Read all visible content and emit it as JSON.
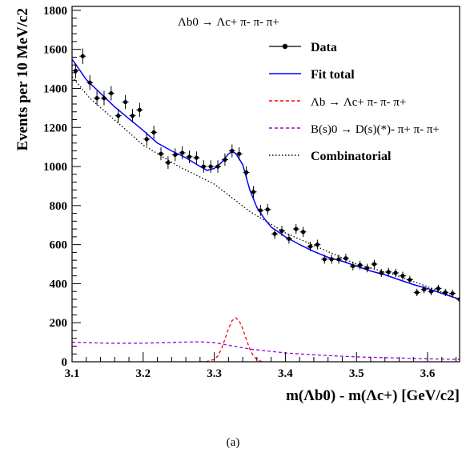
{
  "caption": "(a)",
  "chart_data": {
    "type": "scatter",
    "title": "Λb0 → Λc+ π- π- π+",
    "xlabel": "m(Λb0) - m(Λc+)   [GeV/c2]",
    "ylabel": "Events per 10 MeV/c2",
    "xlim": [
      3.1,
      3.645
    ],
    "ylim": [
      0,
      1820
    ],
    "x_ticks": [
      3.1,
      3.2,
      3.3,
      3.4,
      3.5,
      3.6
    ],
    "x_tick_labels": [
      "3.1",
      "3.2",
      "3.3",
      "3.4",
      "3.5",
      "3.6"
    ],
    "y_ticks": [
      0,
      200,
      400,
      600,
      800,
      1000,
      1200,
      1400,
      1600,
      1800
    ],
    "y_tick_labels": [
      "0",
      "200",
      "400",
      "600",
      "800",
      "1000",
      "1200",
      "1400",
      "1600",
      "1800"
    ],
    "grid": false,
    "legend_position": "top-right",
    "legend": [
      {
        "label": "Data",
        "style": "data"
      },
      {
        "label": "Fit total",
        "style": "solid",
        "color": "#0000ff"
      },
      {
        "label": "Λb → Λc+ π- π- π+",
        "style": "dashed",
        "color": "#ff0000"
      },
      {
        "label": "B(s)0 → D(s)(*)- π+ π- π+",
        "style": "dashed",
        "color": "#a000e0"
      },
      {
        "label": "Combinatorial",
        "style": "dotted",
        "color": "#000000"
      }
    ],
    "series": [
      {
        "name": "Data",
        "style": "points",
        "color": "#000000",
        "x": [
          3.105,
          3.115,
          3.125,
          3.135,
          3.145,
          3.155,
          3.165,
          3.175,
          3.185,
          3.195,
          3.205,
          3.215,
          3.225,
          3.235,
          3.245,
          3.255,
          3.265,
          3.275,
          3.285,
          3.295,
          3.305,
          3.315,
          3.325,
          3.335,
          3.345,
          3.355,
          3.365,
          3.375,
          3.385,
          3.395,
          3.405,
          3.415,
          3.425,
          3.435,
          3.445,
          3.455,
          3.465,
          3.475,
          3.485,
          3.495,
          3.505,
          3.515,
          3.525,
          3.535,
          3.545,
          3.555,
          3.565,
          3.575,
          3.585,
          3.595,
          3.605,
          3.615,
          3.625,
          3.635,
          3.645
        ],
        "y": [
          1490,
          1565,
          1430,
          1350,
          1350,
          1375,
          1260,
          1330,
          1260,
          1290,
          1140,
          1175,
          1065,
          1020,
          1060,
          1070,
          1050,
          1045,
          1000,
          1000,
          1000,
          1035,
          1080,
          1065,
          970,
          870,
          775,
          780,
          655,
          670,
          630,
          680,
          665,
          590,
          600,
          525,
          525,
          525,
          530,
          490,
          495,
          480,
          500,
          455,
          460,
          455,
          440,
          420,
          355,
          370,
          360,
          375,
          355,
          350,
          320
        ],
        "yerr": [
          38,
          40,
          38,
          37,
          37,
          37,
          35,
          36,
          35,
          36,
          34,
          34,
          33,
          32,
          33,
          33,
          32,
          32,
          32,
          32,
          32,
          32,
          33,
          33,
          31,
          30,
          28,
          28,
          26,
          26,
          25,
          26,
          26,
          24,
          25,
          23,
          23,
          23,
          23,
          22,
          22,
          22,
          22,
          21,
          21,
          21,
          21,
          20,
          19,
          19,
          19,
          19,
          19,
          19,
          18
        ]
      },
      {
        "name": "Fit total",
        "style": "solid",
        "color": "#0000ff",
        "x": [
          3.1,
          3.12,
          3.14,
          3.16,
          3.18,
          3.2,
          3.22,
          3.24,
          3.26,
          3.28,
          3.29,
          3.3,
          3.31,
          3.32,
          3.325,
          3.33,
          3.34,
          3.35,
          3.36,
          3.37,
          3.38,
          3.4,
          3.42,
          3.44,
          3.46,
          3.48,
          3.5,
          3.52,
          3.54,
          3.56,
          3.58,
          3.6,
          3.62,
          3.645
        ],
        "y": [
          1550,
          1445,
          1375,
          1305,
          1245,
          1185,
          1120,
          1080,
          1045,
          1000,
          980,
          990,
          1020,
          1065,
          1075,
          1068,
          1010,
          880,
          790,
          735,
          690,
          640,
          600,
          565,
          535,
          515,
          490,
          465,
          445,
          420,
          395,
          375,
          350,
          320
        ]
      },
      {
        "name": "Λb → Λc+ π- π- π+",
        "style": "dashed",
        "color": "#ff0000",
        "x": [
          3.28,
          3.29,
          3.3,
          3.305,
          3.31,
          3.315,
          3.32,
          3.325,
          3.33,
          3.335,
          3.34,
          3.345,
          3.35,
          3.355,
          3.36,
          3.365,
          3.37
        ],
        "y": [
          0,
          2,
          12,
          30,
          65,
          115,
          170,
          210,
          225,
          210,
          170,
          115,
          65,
          30,
          12,
          3,
          0
        ]
      },
      {
        "name": "B(s)0 → D(s)(*)- π+ π- π+",
        "style": "dashed",
        "color": "#a000e0",
        "x": [
          3.1,
          3.15,
          3.2,
          3.25,
          3.28,
          3.3,
          3.32,
          3.35,
          3.4,
          3.45,
          3.5,
          3.55,
          3.6,
          3.645
        ],
        "y": [
          100,
          95,
          95,
          100,
          102,
          98,
          85,
          65,
          45,
          33,
          25,
          20,
          15,
          12
        ]
      },
      {
        "name": "Combinatorial",
        "style": "dotted",
        "color": "#000000",
        "x": [
          3.1,
          3.125,
          3.15,
          3.175,
          3.2,
          3.25,
          3.3,
          3.35,
          3.4,
          3.45,
          3.5,
          3.55,
          3.6,
          3.645
        ],
        "y": [
          1460,
          1350,
          1270,
          1190,
          1110,
          1000,
          910,
          770,
          660,
          580,
          500,
          450,
          385,
          320
        ]
      }
    ]
  }
}
